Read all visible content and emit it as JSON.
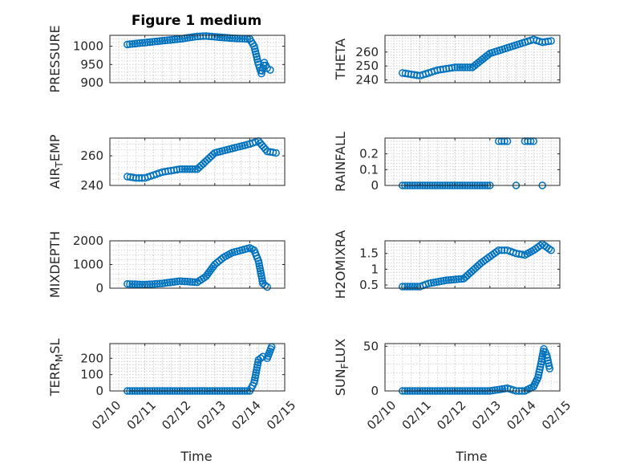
{
  "figure": {
    "title": "Figure 1 medium",
    "xlabel_left": "Time",
    "xlabel_right": "Time"
  },
  "colors": {
    "marker": "#0072BD",
    "axes": "#262626",
    "grid": "#c8c8c8",
    "background": "#ffffff"
  },
  "chart_data": [
    {
      "type": "scatter",
      "ylabel": "PRESSURE",
      "xlim": [
        "02/10",
        "02/15"
      ],
      "ylim": [
        900,
        1030
      ],
      "xticks": [
        "02/10",
        "02/11",
        "02/12",
        "02/13",
        "02/14",
        "02/15"
      ],
      "xtick_labels_visible": false,
      "yticks": [
        900,
        950,
        1000
      ],
      "grid": true,
      "marker": "circle-open",
      "x": [
        "02/10 12:00",
        "02/11 00:00",
        "02/11 12:00",
        "02/12 00:00",
        "02/12 12:00",
        "02/12 18:00",
        "02/13 00:00",
        "02/13 12:00",
        "02/14 00:00",
        "02/14 03:00",
        "02/14 06:00",
        "02/14 08:00",
        "02/14 10:00",
        "02/14 12:00",
        "02/14 14:00"
      ],
      "y": [
        1005,
        1010,
        1015,
        1020,
        1027,
        1028,
        1026,
        1022,
        1020,
        1000,
        950,
        925,
        955,
        940,
        935
      ]
    },
    {
      "type": "scatter",
      "ylabel": "THETA",
      "xlim": [
        "02/10",
        "02/15"
      ],
      "ylim": [
        238,
        272
      ],
      "xticks": [
        "02/10",
        "02/11",
        "02/12",
        "02/13",
        "02/14",
        "02/15"
      ],
      "xtick_labels_visible": false,
      "yticks": [
        240,
        250,
        260
      ],
      "grid": true,
      "marker": "circle-open",
      "x": [
        "02/10 12:00",
        "02/10 18:00",
        "02/11 00:00",
        "02/11 06:00",
        "02/11 12:00",
        "02/11 18:00",
        "02/12 00:00",
        "02/12 12:00",
        "02/13 00:00",
        "02/13 12:00",
        "02/14 00:00",
        "02/14 06:00",
        "02/14 12:00",
        "02/14 18:00"
      ],
      "y": [
        245,
        244,
        243,
        245,
        247,
        248,
        249,
        249,
        259,
        263,
        267,
        269,
        267,
        268
      ]
    },
    {
      "type": "scatter",
      "ylabel": "AIR_TEMP",
      "xlim": [
        "02/10",
        "02/15"
      ],
      "ylim": [
        240,
        272
      ],
      "xticks": [
        "02/10",
        "02/11",
        "02/12",
        "02/13",
        "02/14",
        "02/15"
      ],
      "xtick_labels_visible": false,
      "yticks": [
        240,
        260
      ],
      "grid": true,
      "marker": "circle-open",
      "x": [
        "02/10 12:00",
        "02/10 18:00",
        "02/11 00:00",
        "02/11 06:00",
        "02/11 12:00",
        "02/11 18:00",
        "02/12 00:00",
        "02/12 12:00",
        "02/13 00:00",
        "02/13 12:00",
        "02/14 00:00",
        "02/14 06:00",
        "02/14 12:00",
        "02/14 18:00"
      ],
      "y": [
        246,
        245,
        245,
        247,
        249,
        250,
        251,
        251,
        262,
        265,
        268,
        270,
        263,
        262
      ]
    },
    {
      "type": "scatter",
      "ylabel": "RAINFALL",
      "xlim": [
        "02/10",
        "02/15"
      ],
      "ylim": [
        0,
        0.3
      ],
      "xticks": [
        "02/10",
        "02/11",
        "02/12",
        "02/13",
        "02/14",
        "02/15"
      ],
      "xtick_labels_visible": false,
      "yticks": [
        0,
        0.1,
        0.2
      ],
      "grid": true,
      "marker": "circle-open",
      "x": [
        "02/10 12:00",
        "02/11 00:00",
        "02/11 12:00",
        "02/12 00:00",
        "02/12 12:00",
        "02/13 00:00",
        "02/13 06:00",
        "02/13 12:00",
        "02/13 18:00",
        "02/14 00:00",
        "02/14 06:00",
        "02/14 12:00"
      ],
      "y": [
        0,
        0,
        0,
        0,
        0,
        0,
        0.28,
        0.28,
        0,
        0.28,
        0.28,
        0
      ]
    },
    {
      "type": "scatter",
      "ylabel": "MIXDEPTH",
      "xlim": [
        "02/10",
        "02/15"
      ],
      "ylim": [
        0,
        2000
      ],
      "xticks": [
        "02/10",
        "02/11",
        "02/12",
        "02/13",
        "02/14",
        "02/15"
      ],
      "xtick_labels_visible": false,
      "yticks": [
        0,
        1000,
        2000
      ],
      "grid": true,
      "marker": "circle-open",
      "x": [
        "02/10 12:00",
        "02/11 00:00",
        "02/11 12:00",
        "02/12 00:00",
        "02/12 12:00",
        "02/12 18:00",
        "02/13 00:00",
        "02/13 06:00",
        "02/13 12:00",
        "02/14 00:00",
        "02/14 03:00",
        "02/14 06:00",
        "02/14 09:00",
        "02/14 12:00"
      ],
      "y": [
        180,
        150,
        200,
        300,
        250,
        500,
        1000,
        1300,
        1500,
        1700,
        1600,
        1150,
        200,
        50
      ]
    },
    {
      "type": "scatter",
      "ylabel": "H2OMIXRA",
      "xlim": [
        "02/10",
        "02/15"
      ],
      "ylim": [
        0.4,
        1.9
      ],
      "xticks": [
        "02/10",
        "02/11",
        "02/12",
        "02/13",
        "02/14",
        "02/15"
      ],
      "xtick_labels_visible": false,
      "yticks": [
        0.5,
        1,
        1.5
      ],
      "grid": true,
      "marker": "circle-open",
      "x": [
        "02/10 12:00",
        "02/11 00:00",
        "02/11 06:00",
        "02/11 18:00",
        "02/12 06:00",
        "02/12 18:00",
        "02/13 06:00",
        "02/13 12:00",
        "02/13 18:00",
        "02/14 00:00",
        "02/14 06:00",
        "02/14 12:00",
        "02/14 18:00"
      ],
      "y": [
        0.45,
        0.45,
        0.55,
        0.65,
        0.7,
        1.2,
        1.6,
        1.6,
        1.5,
        1.45,
        1.6,
        1.8,
        1.6
      ]
    },
    {
      "type": "scatter",
      "ylabel": "TERR_MSL",
      "xlim": [
        "02/10",
        "02/15"
      ],
      "ylim": [
        0,
        290
      ],
      "xticks": [
        "02/10",
        "02/11",
        "02/12",
        "02/13",
        "02/14",
        "02/15"
      ],
      "xtick_labels_visible": true,
      "yticks": [
        0,
        100,
        200
      ],
      "grid": true,
      "marker": "circle-open",
      "x": [
        "02/10 12:00",
        "02/11 00:00",
        "02/11 12:00",
        "02/12 00:00",
        "02/12 12:00",
        "02/13 00:00",
        "02/13 12:00",
        "02/14 00:00",
        "02/14 03:00",
        "02/14 06:00",
        "02/14 09:00",
        "02/14 12:00",
        "02/14 15:00"
      ],
      "y": [
        0,
        0,
        0,
        0,
        0,
        0,
        0,
        0,
        50,
        190,
        210,
        200,
        270
      ]
    },
    {
      "type": "scatter",
      "ylabel": "SUN_FLUX",
      "xlim": [
        "02/10",
        "02/15"
      ],
      "ylim": [
        0,
        53
      ],
      "xticks": [
        "02/10",
        "02/11",
        "02/12",
        "02/13",
        "02/14",
        "02/15"
      ],
      "xtick_labels_visible": true,
      "yticks": [
        0,
        50
      ],
      "grid": true,
      "marker": "circle-open",
      "x": [
        "02/10 12:00",
        "02/11 00:00",
        "02/11 12:00",
        "02/12 00:00",
        "02/12 12:00",
        "02/13 00:00",
        "02/13 12:00",
        "02/13 18:00",
        "02/14 00:00",
        "02/14 06:00",
        "02/14 09:00",
        "02/14 11:00",
        "02/14 13:00",
        "02/14 15:00",
        "02/14 17:00"
      ],
      "y": [
        0,
        0,
        0,
        0,
        0,
        0,
        3,
        0,
        0,
        5,
        15,
        30,
        47,
        40,
        25
      ]
    }
  ]
}
